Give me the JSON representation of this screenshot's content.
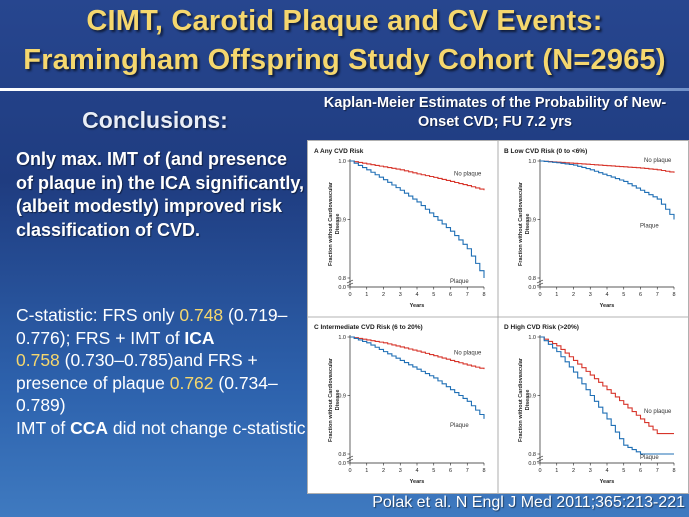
{
  "title": {
    "line1": "CIMT, Carotid Plaque and CV Events:",
    "line2": "Framingham Offspring Study Cohort (N=2965)"
  },
  "left": {
    "heading": "Conclusions:",
    "bold_text": "Only max. IMT of (and presence of plaque in) the ICA significantly, (albeit modestly) improved risk classification of CVD.",
    "c_stat_prefix": "C-statistic: FRS only ",
    "frs_only": "0.748",
    "frs_only_ci": " (0.719–0.776); FRS + IMT of ",
    "ica": "ICA",
    "frs_ica": "0.758",
    "frs_ica_ci": " (0.730–0.785)and FRS + presence of plaque ",
    "frs_plaque": "0.762",
    "frs_plaque_ci": " (0.734–0.789)",
    "cca_prefix": "IMT of ",
    "cca": "CCA",
    "cca_suffix": " did not change c-statistic"
  },
  "figure_title": "Kaplan-Meier Estimates of the Probability of New-Onset CVD; FU 7.2 yrs",
  "citation": "Polak et al. N Engl J Med 2011;365:213-221",
  "colors": {
    "no_plaque": "#d7342a",
    "plaque": "#1f6fb5",
    "title_yellow": "#f5d76e"
  },
  "chart_data": [
    {
      "type": "line",
      "panel": "A",
      "title": "Any CVD Risk",
      "xlabel": "Years",
      "ylabel": "Fraction without Cardiovascular Disease",
      "xlim": [
        0,
        8
      ],
      "ylim": [
        0,
        1.0
      ],
      "xticks": [
        0,
        1,
        2,
        3,
        4,
        5,
        6,
        7,
        8
      ],
      "yticks": [
        0.0,
        0.8,
        0.9,
        1.0
      ],
      "series": [
        {
          "name": "No plaque",
          "x": [
            0,
            1,
            2,
            3,
            4,
            5,
            6,
            7,
            8
          ],
          "y": [
            1.0,
            0.995,
            0.99,
            0.985,
            0.978,
            0.972,
            0.965,
            0.958,
            0.95
          ]
        },
        {
          "name": "Plaque",
          "x": [
            0,
            1,
            2,
            3,
            4,
            5,
            6,
            7,
            8
          ],
          "y": [
            1.0,
            0.985,
            0.968,
            0.95,
            0.93,
            0.905,
            0.88,
            0.85,
            0.79
          ]
        }
      ]
    },
    {
      "type": "line",
      "panel": "B",
      "title": "Low CVD Risk (0 to <6%)",
      "xlabel": "Years",
      "ylabel": "Fraction without Cardiovascular Disease",
      "xlim": [
        0,
        8
      ],
      "ylim": [
        0,
        1.0
      ],
      "xticks": [
        0,
        1,
        2,
        3,
        4,
        5,
        6,
        7,
        8
      ],
      "yticks": [
        0.0,
        0.8,
        0.9,
        1.0
      ],
      "series": [
        {
          "name": "No plaque",
          "x": [
            0,
            1,
            2,
            3,
            4,
            5,
            6,
            7,
            8
          ],
          "y": [
            1.0,
            0.998,
            0.996,
            0.994,
            0.992,
            0.99,
            0.988,
            0.985,
            0.98
          ]
        },
        {
          "name": "Plaque",
          "x": [
            0,
            1,
            2,
            3,
            4,
            5,
            6,
            7,
            8
          ],
          "y": [
            1.0,
            0.997,
            0.993,
            0.985,
            0.975,
            0.965,
            0.95,
            0.935,
            0.9
          ]
        }
      ]
    },
    {
      "type": "line",
      "panel": "C",
      "title": "Intermediate CVD Risk (6 to 20%)",
      "xlabel": "Years",
      "ylabel": "Fraction without Cardiovascular Disease",
      "xlim": [
        0,
        8
      ],
      "ylim": [
        0,
        1.0
      ],
      "xticks": [
        0,
        1,
        2,
        3,
        4,
        5,
        6,
        7,
        8
      ],
      "yticks": [
        0.0,
        0.8,
        0.9,
        1.0
      ],
      "series": [
        {
          "name": "No plaque",
          "x": [
            0,
            1,
            2,
            3,
            4,
            5,
            6,
            7,
            8
          ],
          "y": [
            1.0,
            0.995,
            0.99,
            0.983,
            0.976,
            0.968,
            0.96,
            0.952,
            0.945
          ]
        },
        {
          "name": "Plaque",
          "x": [
            0,
            1,
            2,
            3,
            4,
            5,
            6,
            7,
            8
          ],
          "y": [
            1.0,
            0.99,
            0.975,
            0.96,
            0.945,
            0.93,
            0.91,
            0.89,
            0.86
          ]
        }
      ]
    },
    {
      "type": "line",
      "panel": "D",
      "title": "High CVD Risk (>20%)",
      "xlabel": "Years",
      "ylabel": "Fraction without Cardiovascular Disease",
      "xlim": [
        0,
        8
      ],
      "ylim": [
        0,
        1.0
      ],
      "xticks": [
        0,
        1,
        2,
        3,
        4,
        5,
        6,
        7,
        8
      ],
      "yticks": [
        0.0,
        0.8,
        0.9,
        1.0
      ],
      "series": [
        {
          "name": "No plaque",
          "x": [
            0,
            1,
            2,
            3,
            4,
            5,
            6,
            7,
            8
          ],
          "y": [
            1.0,
            0.985,
            0.96,
            0.935,
            0.91,
            0.885,
            0.86,
            0.835,
            0.835
          ]
        },
        {
          "name": "Plaque",
          "x": [
            0,
            1,
            2,
            3,
            4,
            5,
            6,
            7,
            8
          ],
          "y": [
            1.0,
            0.975,
            0.94,
            0.9,
            0.86,
            0.815,
            0.77,
            0.72,
            0.64
          ]
        }
      ]
    }
  ]
}
